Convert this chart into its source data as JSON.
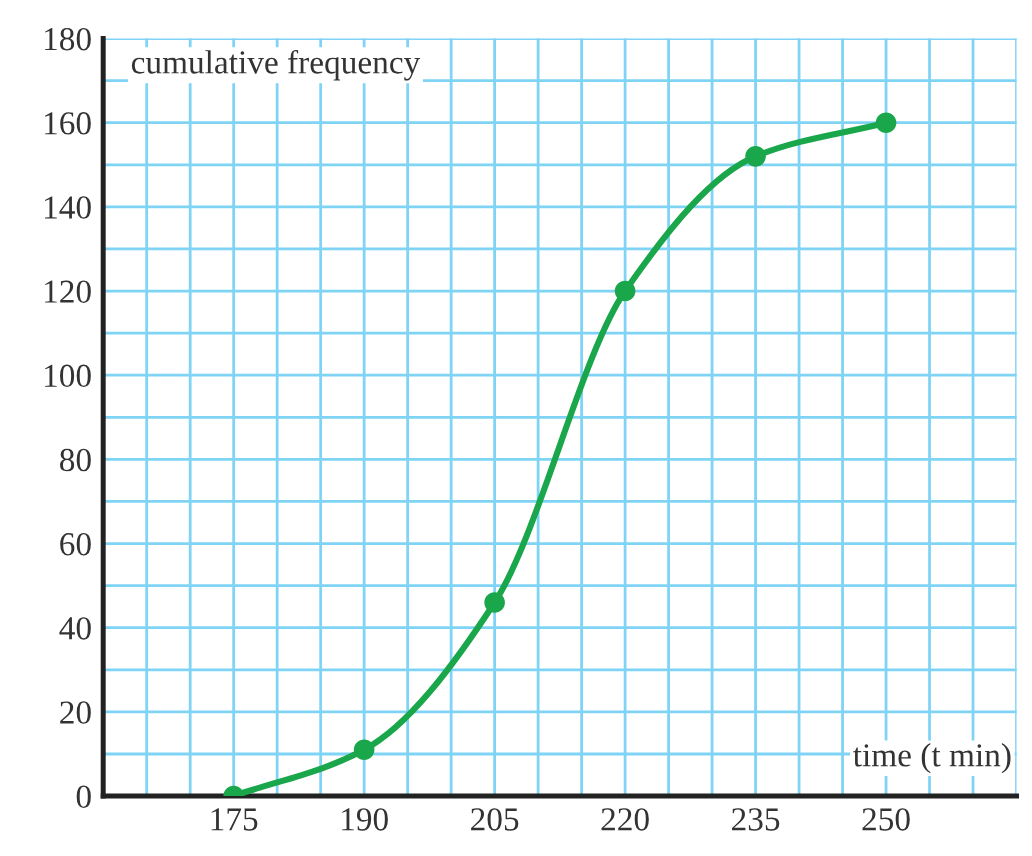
{
  "chart_data": {
    "type": "line",
    "xlabel": "time (t min)",
    "ylabel": "cumulative frequency",
    "x": [
      175,
      190,
      205,
      220,
      235,
      250
    ],
    "series": [
      {
        "color": "#1aa64a",
        "values": [
          0,
          11,
          46,
          120,
          152,
          160
        ]
      }
    ],
    "xlim": [
      160,
      265
    ],
    "ylim": [
      0,
      180
    ],
    "xticks": [
      175,
      190,
      205,
      220,
      235,
      250
    ],
    "yticks": [
      0,
      20,
      40,
      60,
      80,
      100,
      120,
      140,
      160,
      180
    ],
    "grid": true,
    "marker": "circle",
    "line_style": "solid"
  }
}
